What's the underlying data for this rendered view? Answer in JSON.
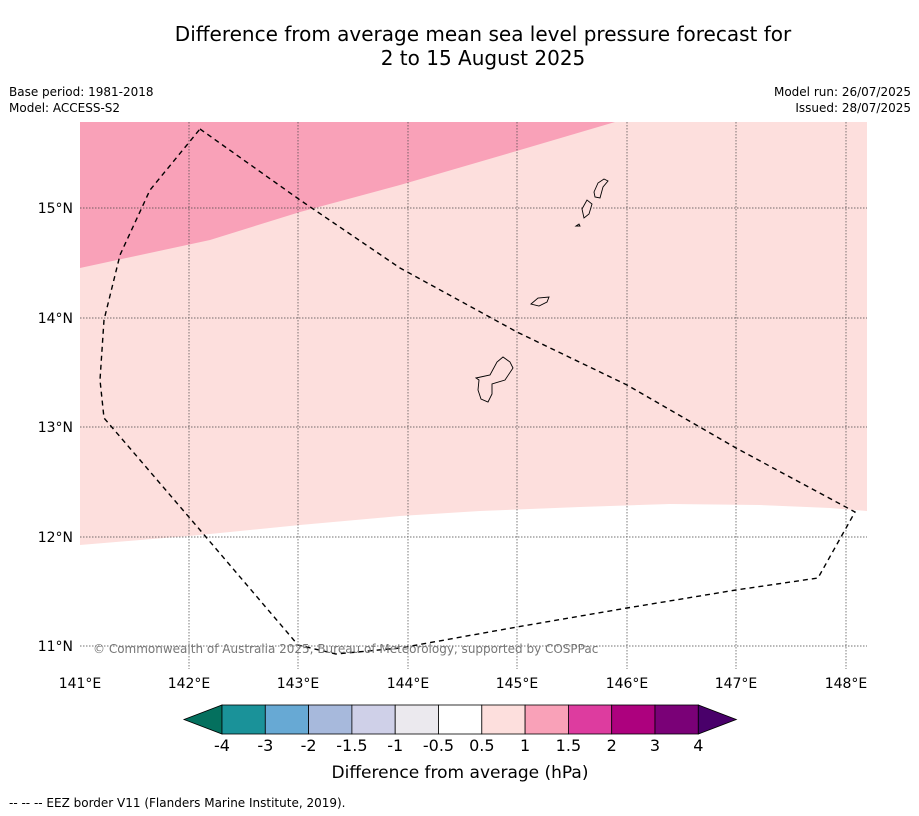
{
  "title_line1": "Difference from average mean sea level pressure forecast for",
  "title_line2": "2 to 15 August 2025",
  "base_period": "Base period: 1981-2018",
  "model": "Model: ACCESS-S2",
  "model_run": "Model run: 26/07/2025",
  "issued": "Issued: 28/07/2025",
  "copyright": "© Commonwealth of Australia 2025, Bureau of Meteorology, supported by COSPPac",
  "footer": "--  --  -- EEZ border V11 (Flanders Marine Institute, 2019).",
  "map": {
    "lon_range": [
      141.0,
      148.2
    ],
    "lat_range": [
      10.8,
      15.8
    ],
    "lon_ticks": [
      "141°E",
      "142°E",
      "143°E",
      "144°E",
      "145°E",
      "146°E",
      "147°E",
      "148°E"
    ],
    "lat_ticks": [
      "11°N",
      "12°N",
      "13°N",
      "14°N",
      "15°N"
    ],
    "regions": [
      {
        "category": "0.5 to 1",
        "color": "#fddfdd"
      },
      {
        "category": "1 to 1.5",
        "color": "#f9a1b8"
      },
      {
        "category": "-0.5 to 0.5",
        "color": "#ffffff"
      }
    ],
    "eez_border_style": "dashed"
  },
  "colorbar": {
    "label": "Difference from average (hPa)",
    "tick_labels": [
      "-4",
      "-3",
      "-2",
      "-1.5",
      "-1",
      "-0.5",
      "0.5",
      "1",
      "1.5",
      "2",
      "3",
      "4"
    ],
    "low_extend_color": "#04705e",
    "colors": [
      "#1a9299",
      "#67a9d4",
      "#a7b9dc",
      "#cfd0e8",
      "#ebe9ee",
      "#ffffff",
      "#fddfdd",
      "#f9a1b8",
      "#dd3c9f",
      "#ad017e",
      "#7a0177"
    ],
    "high_extend_color": "#49006a"
  }
}
